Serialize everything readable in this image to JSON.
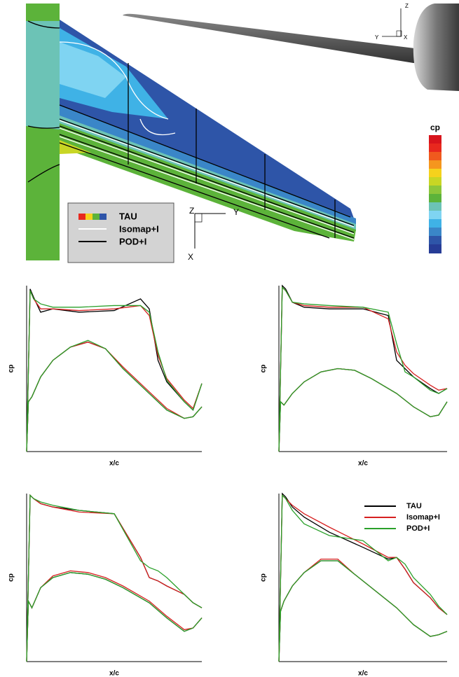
{
  "contour": {
    "legend": {
      "items": [
        "TAU",
        "Isomap+I",
        "POD+I"
      ]
    },
    "colorbar": {
      "title": "cp"
    },
    "axes": {
      "z": "Z",
      "y": "Y",
      "x": "X"
    },
    "view_axes": {
      "z": "Z",
      "y": "Y",
      "x": "X"
    }
  },
  "chart_data": [
    {
      "type": "line",
      "xlabel": "x/c",
      "ylabel": "cp",
      "xlim": [
        0,
        1
      ],
      "ylim": [
        0,
        1
      ],
      "x": [
        1,
        0.95,
        0.9,
        0.8,
        0.75,
        0.7,
        0.65,
        0.5,
        0.3,
        0.15,
        0.08,
        0.04,
        0.02,
        0,
        0.01,
        0.03,
        0.08,
        0.15,
        0.25,
        0.35,
        0.45,
        0.55,
        0.7,
        0.8,
        0.9,
        0.95,
        1
      ],
      "series": [
        {
          "color": "#000000",
          "values": [
            0.41,
            0.25,
            0.3,
            0.42,
            0.55,
            0.86,
            0.92,
            0.85,
            0.84,
            0.86,
            0.84,
            0.93,
            0.98,
            0,
            0.3,
            0.33,
            0.45,
            0.55,
            0.63,
            0.66,
            0.62,
            0.5,
            0.35,
            0.25,
            0.2,
            0.21,
            0.27
          ]
        },
        {
          "color": "#d62020",
          "values": [
            0.41,
            0.26,
            0.31,
            0.44,
            0.58,
            0.82,
            0.88,
            0.86,
            0.85,
            0.86,
            0.86,
            0.92,
            0.97,
            0,
            0.3,
            0.33,
            0.45,
            0.55,
            0.63,
            0.66,
            0.62,
            0.51,
            0.36,
            0.26,
            0.2,
            0.21,
            0.27
          ]
        },
        {
          "color": "#2aa02a",
          "values": [
            0.41,
            0.25,
            0.3,
            0.43,
            0.6,
            0.84,
            0.88,
            0.88,
            0.87,
            0.87,
            0.89,
            0.92,
            0.97,
            0,
            0.3,
            0.33,
            0.45,
            0.55,
            0.63,
            0.67,
            0.62,
            0.5,
            0.35,
            0.25,
            0.2,
            0.21,
            0.27
          ]
        }
      ]
    },
    {
      "type": "line",
      "xlabel": "x/c",
      "ylabel": "cp",
      "xlim": [
        0,
        1
      ],
      "ylim": [
        0,
        1
      ],
      "x": [
        1,
        0.95,
        0.9,
        0.8,
        0.75,
        0.7,
        0.65,
        0.5,
        0.3,
        0.15,
        0.08,
        0.04,
        0.02,
        0,
        0.01,
        0.03,
        0.08,
        0.15,
        0.25,
        0.35,
        0.45,
        0.55,
        0.7,
        0.8,
        0.9,
        0.95,
        1
      ],
      "series": [
        {
          "color": "#000000",
          "values": [
            0.38,
            0.35,
            0.38,
            0.45,
            0.5,
            0.55,
            0.82,
            0.86,
            0.86,
            0.87,
            0.9,
            0.98,
            1.0,
            0,
            0.3,
            0.28,
            0.35,
            0.42,
            0.48,
            0.5,
            0.49,
            0.44,
            0.35,
            0.27,
            0.21,
            0.22,
            0.3
          ]
        },
        {
          "color": "#d62020",
          "values": [
            0.38,
            0.37,
            0.4,
            0.47,
            0.52,
            0.6,
            0.8,
            0.87,
            0.87,
            0.88,
            0.9,
            0.97,
            0.99,
            0,
            0.3,
            0.28,
            0.35,
            0.42,
            0.48,
            0.5,
            0.49,
            0.44,
            0.35,
            0.27,
            0.21,
            0.22,
            0.3
          ]
        },
        {
          "color": "#2aa02a",
          "values": [
            0.38,
            0.35,
            0.37,
            0.45,
            0.48,
            0.65,
            0.84,
            0.87,
            0.88,
            0.89,
            0.9,
            0.97,
            0.99,
            0,
            0.3,
            0.28,
            0.35,
            0.42,
            0.48,
            0.5,
            0.49,
            0.44,
            0.35,
            0.27,
            0.21,
            0.22,
            0.3
          ]
        }
      ]
    },
    {
      "type": "line",
      "xlabel": "x/c",
      "ylabel": "cp",
      "xlim": [
        0,
        1
      ],
      "ylim": [
        0,
        1
      ],
      "x": [
        1,
        0.95,
        0.9,
        0.8,
        0.75,
        0.7,
        0.65,
        0.5,
        0.3,
        0.15,
        0.08,
        0.04,
        0.02,
        0,
        0.01,
        0.03,
        0.08,
        0.15,
        0.25,
        0.35,
        0.45,
        0.55,
        0.7,
        0.8,
        0.9,
        0.95,
        1
      ],
      "series": [
        {
          "color": "#000000",
          "values": [
            0.32,
            0.35,
            0.4,
            0.45,
            0.48,
            0.5,
            0.62,
            0.88,
            0.9,
            0.92,
            0.94,
            0.97,
            0.99,
            0,
            0.36,
            0.32,
            0.44,
            0.5,
            0.53,
            0.52,
            0.49,
            0.44,
            0.35,
            0.26,
            0.18,
            0.2,
            0.26
          ]
        },
        {
          "color": "#d62020",
          "values": [
            0.32,
            0.35,
            0.4,
            0.45,
            0.48,
            0.5,
            0.62,
            0.88,
            0.89,
            0.92,
            0.94,
            0.97,
            0.99,
            0,
            0.36,
            0.32,
            0.44,
            0.51,
            0.54,
            0.53,
            0.5,
            0.45,
            0.36,
            0.27,
            0.19,
            0.2,
            0.26
          ]
        },
        {
          "color": "#2aa02a",
          "values": [
            0.32,
            0.35,
            0.4,
            0.5,
            0.54,
            0.56,
            0.6,
            0.88,
            0.9,
            0.93,
            0.95,
            0.97,
            0.99,
            0,
            0.36,
            0.32,
            0.44,
            0.5,
            0.53,
            0.52,
            0.49,
            0.44,
            0.35,
            0.26,
            0.18,
            0.2,
            0.26
          ]
        }
      ]
    },
    {
      "type": "line",
      "xlabel": "x/c",
      "ylabel": "cp",
      "xlim": [
        0,
        1
      ],
      "ylim": [
        0,
        1
      ],
      "legend": "upper right",
      "x": [
        1,
        0.95,
        0.9,
        0.8,
        0.75,
        0.7,
        0.65,
        0.5,
        0.3,
        0.15,
        0.08,
        0.04,
        0.02,
        0,
        0.01,
        0.03,
        0.08,
        0.15,
        0.25,
        0.35,
        0.45,
        0.55,
        0.7,
        0.8,
        0.9,
        0.95,
        1
      ],
      "series": [
        {
          "name": "TAU",
          "color": "#000000",
          "values": [
            0.28,
            0.32,
            0.38,
            0.47,
            0.55,
            0.62,
            0.61,
            0.68,
            0.77,
            0.86,
            0.92,
            0.98,
            1.0,
            0,
            0.3,
            0.36,
            0.45,
            0.53,
            0.6,
            0.6,
            0.52,
            0.44,
            0.32,
            0.22,
            0.15,
            0.16,
            0.18
          ]
        },
        {
          "name": "Isomap+I",
          "color": "#d62020",
          "values": [
            0.28,
            0.32,
            0.38,
            0.47,
            0.55,
            0.62,
            0.62,
            0.7,
            0.8,
            0.88,
            0.93,
            0.97,
            0.99,
            0,
            0.3,
            0.36,
            0.45,
            0.53,
            0.61,
            0.61,
            0.52,
            0.44,
            0.32,
            0.22,
            0.15,
            0.16,
            0.18
          ]
        },
        {
          "name": "POD+I",
          "color": "#2aa02a",
          "values": [
            0.28,
            0.33,
            0.4,
            0.5,
            0.58,
            0.62,
            0.6,
            0.72,
            0.75,
            0.82,
            0.9,
            0.97,
            0.99,
            0,
            0.3,
            0.36,
            0.45,
            0.53,
            0.6,
            0.6,
            0.52,
            0.44,
            0.32,
            0.22,
            0.15,
            0.16,
            0.18
          ]
        }
      ]
    }
  ]
}
